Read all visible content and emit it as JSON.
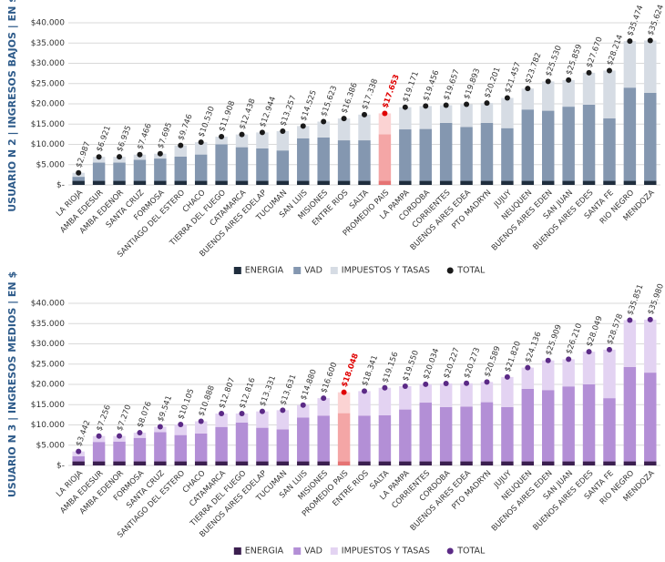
{
  "chart_data": [
    {
      "type": "bar",
      "stacked": true,
      "y_label": "USUARIO N 2 | INGRESOS BAJOS | EN $",
      "categories": [
        "LA RIOJA",
        "AMBA EDESUR",
        "AMBA EDENOR",
        "SANTA CRUZ",
        "FORMOSA",
        "SANTIAGO DEL ESTERO",
        "CHACO",
        "TIERRA DEL FUEGO",
        "CATAMARCA",
        "BUENOS AIRES EDELAP",
        "TUCUMAN",
        "SAN LUIS",
        "MISIONES",
        "ENTRE RIOS",
        "SALTA",
        "PROMEDIO PAIS",
        "LA PAMPA",
        "CORDOBA",
        "CORRIENTES",
        "BUENOS AIRES EDEA",
        "PTO MADRYN",
        "JUJUY",
        "NEUQUEN",
        "BUENOS AIRES EDEN",
        "SAN JUAN",
        "BUENOS AIRES EDES",
        "SANTA FE",
        "RIO NEGRO",
        "MENDOZA"
      ],
      "highlight": "PROMEDIO PAIS",
      "highlight_colors": [
        "#e57373",
        "#f4a6a6",
        "#fbd3d3"
      ],
      "highlight_label_color": "#e00000",
      "series": [
        {
          "name": "ENERGIA",
          "color": "#1f2d3d",
          "values": [
            1000,
            1000,
            1000,
            1000,
            1000,
            1000,
            1000,
            1000,
            1000,
            1000,
            1000,
            1000,
            1000,
            1000,
            1000,
            1000,
            1000,
            1000,
            1000,
            1000,
            1000,
            1000,
            1000,
            1000,
            1000,
            1000,
            1000,
            1000,
            1000
          ]
        },
        {
          "name": "VAD",
          "color": "#8497b0",
          "values": [
            1000,
            4500,
            4500,
            5200,
            5500,
            6000,
            6500,
            9000,
            8300,
            8000,
            7500,
            10500,
            10700,
            10000,
            10000,
            11500,
            12700,
            12800,
            14300,
            13300,
            14300,
            13000,
            17600,
            17300,
            18300,
            18800,
            15400,
            23000,
            21700
          ]
        },
        {
          "name": "IMPUESTOS Y TASAS",
          "color": "#d6dce4",
          "values": [
            987,
            1421,
            1435,
            1266,
            1195,
            2746,
            3030,
            1908,
            3138,
            3944,
            4757,
            3025,
            3923,
            5386,
            6338,
            5153,
            5471,
            5656,
            4357,
            5593,
            4901,
            7457,
            5182,
            7230,
            6559,
            7870,
            11814,
            11474,
            12924
          ]
        },
        {
          "name": "TOTAL",
          "color": "#1a1a1a",
          "marker": "dot",
          "values": [
            2987,
            6921,
            6935,
            7466,
            7695,
            9746,
            10530,
            11908,
            12438,
            12944,
            13257,
            14525,
            15623,
            16386,
            17338,
            17653,
            19171,
            19456,
            19657,
            19893,
            20201,
            21457,
            23782,
            25530,
            25859,
            27670,
            28214,
            35474,
            35624
          ],
          "value_labels": [
            "$2.987",
            "$6.921",
            "$6.935",
            "$7.466",
            "$7.695",
            "$9.746",
            "$10.530",
            "$11.908",
            "$12.438",
            "$12.944",
            "$13.257",
            "$14.525",
            "$15.623",
            "$16.386",
            "$17.338",
            "$17.653",
            "$19.171",
            "$19.456",
            "$19.657",
            "$19.893",
            "$20.201",
            "$21.457",
            "$23.782",
            "$25.530",
            "$25.859",
            "$27.670",
            "$28.214",
            "$35.474",
            "$35.624"
          ]
        }
      ],
      "ylim": [
        0,
        40000
      ],
      "yticks": [
        {
          "value": 0,
          "label": "$-"
        },
        {
          "value": 5000,
          "label": "$5.000"
        },
        {
          "value": 10000,
          "label": "$10.000"
        },
        {
          "value": 15000,
          "label": "$15.000"
        },
        {
          "value": 20000,
          "label": "$20.000"
        },
        {
          "value": 25000,
          "label": "$25.000"
        },
        {
          "value": 30000,
          "label": "$30.000"
        },
        {
          "value": 35000,
          "label": "$35.000"
        },
        {
          "value": 40000,
          "label": "$40.000"
        }
      ],
      "grid": true,
      "legend": "bottom"
    },
    {
      "type": "bar",
      "stacked": true,
      "y_label": "USUARIO N 3 | INGRESOS MEDIOS | EN $",
      "categories": [
        "LA RIOJA",
        "AMBA EDESUR",
        "AMBA EDENOR",
        "FORMOSA",
        "SANTA CRUZ",
        "SANTIAGO DEL ESTERO",
        "CHACO",
        "CATAMARCA",
        "TIERRA DEL FUEGO",
        "BUENOS AIRES EDELAP",
        "TUCUMAN",
        "SAN LUIS",
        "MISIONES",
        "PROMEDIO PAIS",
        "ENTRE RIOS",
        "SALTA",
        "LA PAMPA",
        "CORRIENTES",
        "CORDOBA",
        "BUENOS AIRES EDEA",
        "PTO MADRYN",
        "JUJUY",
        "NEUQUEN",
        "BUENOS AIRES EDEN",
        "SAN JUAN",
        "BUENOS AIRES EDES",
        "SANTA FE",
        "RIO NEGRO",
        "MENDOZA"
      ],
      "highlight": "PROMEDIO PAIS",
      "highlight_colors": [
        "#e57373",
        "#f4a6a6",
        "#fbd3d3"
      ],
      "highlight_label_color": "#e00000",
      "series": [
        {
          "name": "ENERGIA",
          "color": "#3b1f4f",
          "values": [
            1000,
            1000,
            1000,
            1000,
            1000,
            1000,
            1000,
            1000,
            1000,
            1000,
            1000,
            1000,
            1000,
            1000,
            1000,
            1000,
            1000,
            1000,
            1000,
            1000,
            1000,
            1000,
            1000,
            1000,
            1000,
            1000,
            1000,
            1000,
            1000
          ]
        },
        {
          "name": "VAD",
          "color": "#b38fd6",
          "values": [
            1300,
            4800,
            4900,
            5800,
            7200,
            6500,
            6900,
            8500,
            9600,
            8300,
            7900,
            10800,
            11300,
            11900,
            11300,
            11400,
            12800,
            14500,
            13400,
            13500,
            14600,
            13400,
            17900,
            17600,
            18500,
            19000,
            15600,
            23300,
            21900
          ]
        },
        {
          "name": "IMPUESTOS Y TASAS",
          "color": "#e3d3f2",
          "values": [
            1142,
            1456,
            1370,
            1276,
            1341,
            2605,
            2988,
            3307,
            2216,
            4031,
            4731,
            3080,
            4300,
            5148,
            6041,
            6756,
            5750,
            4534,
            5827,
            5773,
            4989,
            7420,
            5236,
            7309,
            6710,
            8049,
            11978,
            11551,
            13080
          ]
        },
        {
          "name": "TOTAL",
          "color": "#5b2a86",
          "marker": "dot",
          "values": [
            3442,
            7256,
            7270,
            8076,
            9541,
            10105,
            10888,
            12807,
            12816,
            13331,
            13631,
            14880,
            16600,
            18048,
            18341,
            19156,
            19550,
            20034,
            20227,
            20273,
            20589,
            21820,
            24136,
            25909,
            26210,
            28049,
            28578,
            35851,
            35980
          ],
          "value_labels": [
            "$3.442",
            "$7.256",
            "$7.270",
            "$8.076",
            "$9.541",
            "$10.105",
            "$10.888",
            "$12.807",
            "$12.816",
            "$13.331",
            "$13.631",
            "$14.880",
            "$16.600",
            "$18.048",
            "$18.341",
            "$19.156",
            "$19.550",
            "$20.034",
            "$20.227",
            "$20.273",
            "$20.589",
            "$21.820",
            "$24.136",
            "$25.909",
            "$26.210",
            "$28.049",
            "$28.578",
            "$35.851",
            "$35.980"
          ]
        }
      ],
      "ylim": [
        0,
        40000
      ],
      "yticks": [
        {
          "value": 0,
          "label": "$-"
        },
        {
          "value": 5000,
          "label": "$5.000"
        },
        {
          "value": 10000,
          "label": "$10.000"
        },
        {
          "value": 15000,
          "label": "$15.000"
        },
        {
          "value": 20000,
          "label": "$20.000"
        },
        {
          "value": 25000,
          "label": "$25.000"
        },
        {
          "value": 30000,
          "label": "$30.000"
        },
        {
          "value": 35000,
          "label": "$35.000"
        },
        {
          "value": 40000,
          "label": "$40.000"
        }
      ],
      "grid": true,
      "legend": "bottom"
    }
  ]
}
